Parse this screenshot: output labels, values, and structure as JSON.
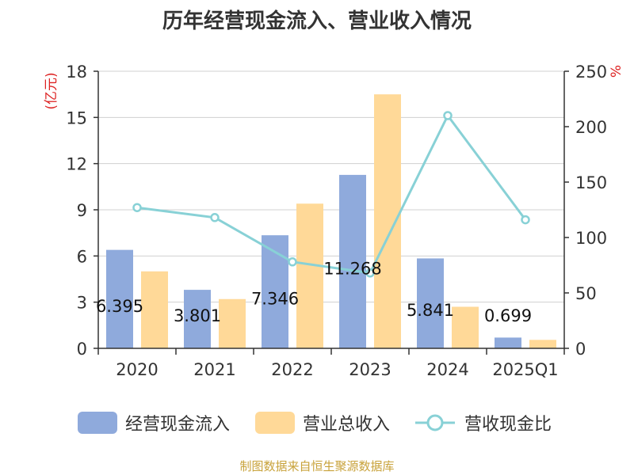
{
  "chart_data": {
    "type": "bar",
    "title": "历年经营现金流入、营业收入情况",
    "categories": [
      "2020",
      "2021",
      "2022",
      "2023",
      "2024",
      "2025Q1"
    ],
    "y_left": {
      "label": "(亿元)",
      "range": [
        0,
        18
      ],
      "ticks": [
        "0",
        "3",
        "6",
        "9",
        "12",
        "15",
        "18"
      ]
    },
    "y_right": {
      "label": "%",
      "range": [
        0,
        250
      ],
      "ticks": [
        "0",
        "50",
        "100",
        "150",
        "200",
        "250"
      ]
    },
    "grid": true,
    "legend_position": "bottom",
    "series": [
      {
        "name": "经营现金流入",
        "type": "bar",
        "axis": "left",
        "color": "#8faadc",
        "values": [
          6.395,
          3.801,
          7.346,
          11.268,
          5.841,
          0.699
        ],
        "data_labels": [
          "6.395",
          "3.801",
          "7.346",
          "11.268",
          "5.841",
          "0.699"
        ]
      },
      {
        "name": "营业总收入",
        "type": "bar",
        "axis": "left",
        "color": "#ffd998",
        "values": [
          5.0,
          3.2,
          9.4,
          16.5,
          2.7,
          0.55
        ]
      },
      {
        "name": "营收现金比",
        "type": "line",
        "axis": "right",
        "color": "#88d1d6",
        "values": [
          127,
          118,
          78,
          68,
          210,
          116
        ]
      }
    ]
  },
  "footer": {
    "source": "制图数据来自恒生聚源数据库"
  }
}
